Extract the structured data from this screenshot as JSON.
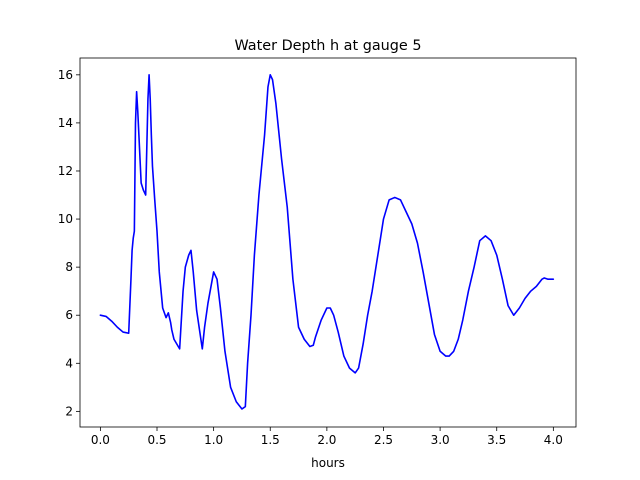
{
  "chart_data": {
    "type": "line",
    "title": "Water Depth h at gauge 5",
    "xlabel": "hours",
    "ylabel": "",
    "xlim": [
      -0.18,
      4.2
    ],
    "ylim": [
      1.35,
      16.7
    ],
    "xticks": [
      0.0,
      0.5,
      1.0,
      1.5,
      2.0,
      2.5,
      3.0,
      3.5,
      4.0
    ],
    "xtick_labels": [
      "0.0",
      "0.5",
      "1.0",
      "1.5",
      "2.0",
      "2.5",
      "3.0",
      "3.5",
      "4.0"
    ],
    "yticks": [
      2,
      4,
      6,
      8,
      10,
      12,
      14,
      16
    ],
    "ytick_labels": [
      "2",
      "4",
      "6",
      "8",
      "10",
      "12",
      "14",
      "16"
    ],
    "grid": false,
    "series": [
      {
        "color": "#0000ff",
        "x": [
          0.0,
          0.05,
          0.1,
          0.15,
          0.2,
          0.25,
          0.27,
          0.28,
          0.29,
          0.3,
          0.31,
          0.32,
          0.33,
          0.34,
          0.36,
          0.38,
          0.4,
          0.42,
          0.43,
          0.44,
          0.45,
          0.46,
          0.48,
          0.5,
          0.52,
          0.55,
          0.58,
          0.6,
          0.62,
          0.63,
          0.65,
          0.7,
          0.73,
          0.75,
          0.78,
          0.8,
          0.82,
          0.85,
          0.9,
          0.92,
          0.95,
          1.0,
          1.03,
          1.06,
          1.1,
          1.15,
          1.2,
          1.25,
          1.28,
          1.3,
          1.33,
          1.36,
          1.4,
          1.45,
          1.48,
          1.5,
          1.52,
          1.55,
          1.6,
          1.65,
          1.7,
          1.75,
          1.8,
          1.85,
          1.88,
          1.9,
          1.95,
          2.0,
          2.03,
          2.06,
          2.1,
          2.15,
          2.2,
          2.25,
          2.28,
          2.32,
          2.36,
          2.4,
          2.45,
          2.5,
          2.55,
          2.6,
          2.65,
          2.7,
          2.75,
          2.8,
          2.85,
          2.9,
          2.95,
          3.0,
          3.05,
          3.08,
          3.12,
          3.16,
          3.2,
          3.25,
          3.3,
          3.35,
          3.4,
          3.45,
          3.5,
          3.55,
          3.6,
          3.65,
          3.7,
          3.75,
          3.8,
          3.85,
          3.9,
          3.92,
          3.95,
          4.0
        ],
        "y": [
          6.0,
          5.95,
          5.75,
          5.5,
          5.3,
          5.25,
          7.5,
          8.7,
          9.2,
          9.5,
          14.0,
          15.3,
          14.5,
          13.5,
          11.5,
          11.2,
          11.0,
          15.0,
          16.0,
          15.0,
          13.5,
          12.2,
          10.8,
          9.5,
          7.8,
          6.3,
          5.9,
          6.1,
          5.7,
          5.4,
          5.0,
          4.6,
          7.0,
          8.0,
          8.5,
          8.7,
          7.8,
          6.2,
          4.6,
          5.5,
          6.5,
          7.8,
          7.5,
          6.3,
          4.5,
          3.0,
          2.4,
          2.1,
          2.2,
          4.0,
          6.0,
          8.5,
          11.0,
          13.5,
          15.5,
          16.0,
          15.8,
          14.8,
          12.5,
          10.5,
          7.5,
          5.5,
          5.0,
          4.7,
          4.75,
          5.1,
          5.8,
          6.3,
          6.3,
          6.0,
          5.3,
          4.3,
          3.8,
          3.6,
          3.8,
          4.8,
          6.0,
          7.0,
          8.5,
          10.0,
          10.8,
          10.9,
          10.8,
          10.3,
          9.8,
          9.0,
          7.8,
          6.5,
          5.2,
          4.5,
          4.3,
          4.3,
          4.5,
          5.0,
          5.8,
          7.0,
          8.0,
          9.1,
          9.3,
          9.1,
          8.5,
          7.5,
          6.4,
          6.0,
          6.3,
          6.7,
          7.0,
          7.2,
          7.5,
          7.55,
          7.5,
          7.5
        ]
      }
    ]
  }
}
